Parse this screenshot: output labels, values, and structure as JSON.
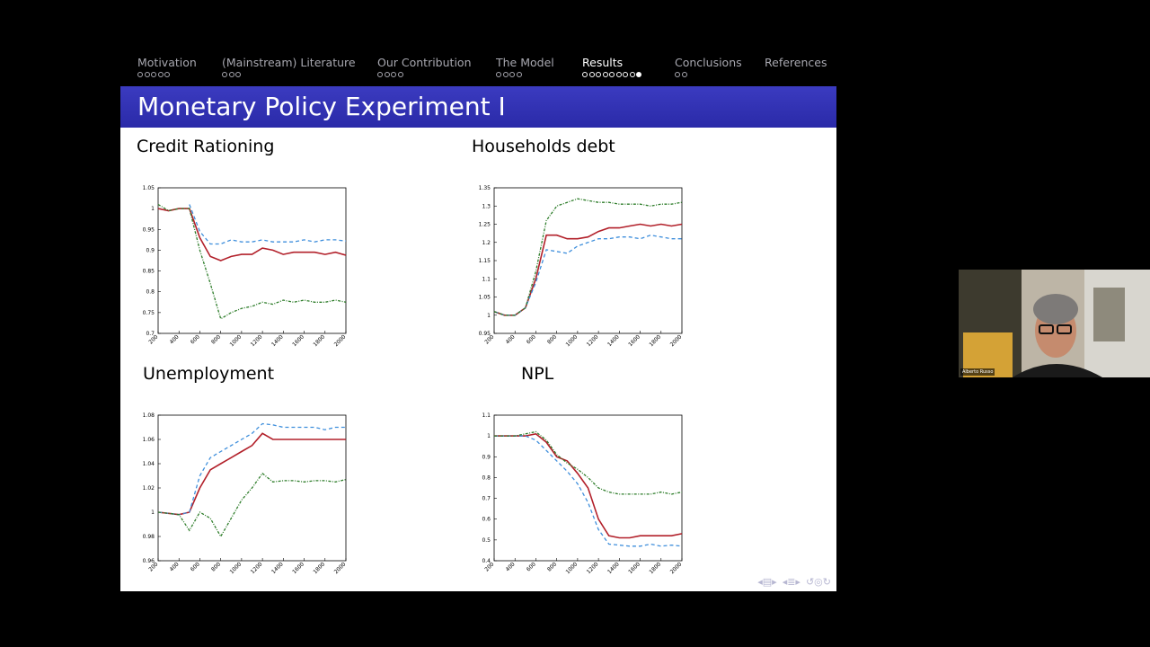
{
  "nav": {
    "sections": [
      {
        "label": "Motivation",
        "dots": 5,
        "filled": -1,
        "active": false
      },
      {
        "label": "(Mainstream) Literature",
        "dots": 3,
        "filled": -1,
        "active": false
      },
      {
        "label": "Our Contribution",
        "dots": 4,
        "filled": -1,
        "active": false
      },
      {
        "label": "The Model",
        "dots": 4,
        "filled": -1,
        "active": false
      },
      {
        "label": "Results",
        "dots": 9,
        "filled": 8,
        "active": true
      },
      {
        "label": "Conclusions",
        "dots": 2,
        "filled": -1,
        "active": false
      },
      {
        "label": "References",
        "dots": 0,
        "filled": -1,
        "active": false
      }
    ]
  },
  "slide": {
    "title": "Monetary Policy Experiment I",
    "panels": {
      "credit": "Credit Rationing",
      "debt": "Households debt",
      "unemp": "Unemployment",
      "npl": "NPL"
    }
  },
  "video": {
    "name": "Alberto Russo"
  },
  "colors": {
    "red": "#b2202a",
    "blue": "#3f8fdc",
    "green": "#2e7d2a",
    "title_bar": "#2f2fb0"
  },
  "chart_data": [
    {
      "type": "line",
      "title": "Credit Rationing",
      "x": [
        200,
        300,
        400,
        500,
        600,
        700,
        800,
        900,
        1000,
        1100,
        1200,
        1300,
        1400,
        1500,
        1600,
        1700,
        1800,
        1900,
        2000
      ],
      "xticks": [
        200,
        400,
        600,
        800,
        1000,
        1200,
        1400,
        1600,
        1800,
        2000
      ],
      "yticks": [
        0.7,
        0.75,
        0.8,
        0.85,
        0.9,
        0.95,
        1,
        1.05
      ],
      "ylim": [
        0.7,
        1.05
      ],
      "series": [
        {
          "color": "red",
          "style": "solid",
          "values": [
            1.0,
            0.995,
            1.0,
            1.0,
            0.93,
            0.885,
            0.875,
            0.885,
            0.89,
            0.89,
            0.905,
            0.9,
            0.89,
            0.895,
            0.895,
            0.895,
            0.89,
            0.895,
            0.888
          ]
        },
        {
          "color": "blue",
          "style": "dashed",
          "values": [
            null,
            null,
            null,
            1.01,
            0.945,
            0.915,
            0.915,
            0.925,
            0.92,
            0.92,
            0.925,
            0.92,
            0.92,
            0.92,
            0.925,
            0.92,
            0.925,
            0.925,
            0.922
          ]
        },
        {
          "color": "green",
          "style": "dashdot",
          "values": [
            1.01,
            0.995,
            1.0,
            1.0,
            0.9,
            0.82,
            0.735,
            0.75,
            0.76,
            0.765,
            0.775,
            0.77,
            0.78,
            0.775,
            0.78,
            0.775,
            0.775,
            0.78,
            0.775
          ]
        }
      ]
    },
    {
      "type": "line",
      "title": "Households debt",
      "x": [
        200,
        300,
        400,
        500,
        600,
        700,
        800,
        900,
        1000,
        1100,
        1200,
        1300,
        1400,
        1500,
        1600,
        1700,
        1800,
        1900,
        2000
      ],
      "xticks": [
        200,
        400,
        600,
        800,
        1000,
        1200,
        1400,
        1600,
        1800,
        2000
      ],
      "yticks": [
        0.95,
        1,
        1.05,
        1.1,
        1.15,
        1.2,
        1.25,
        1.3,
        1.35
      ],
      "ylim": [
        0.95,
        1.35
      ],
      "series": [
        {
          "color": "red",
          "style": "solid",
          "values": [
            1.01,
            1.0,
            1.0,
            1.02,
            1.1,
            1.22,
            1.22,
            1.21,
            1.21,
            1.215,
            1.23,
            1.24,
            1.24,
            1.245,
            1.25,
            1.245,
            1.25,
            1.245,
            1.25
          ]
        },
        {
          "color": "blue",
          "style": "dashed",
          "values": [
            1.01,
            1.0,
            1.0,
            1.02,
            1.09,
            1.18,
            1.175,
            1.17,
            1.19,
            1.2,
            1.21,
            1.21,
            1.215,
            1.215,
            1.21,
            1.22,
            1.215,
            1.21,
            1.21
          ]
        },
        {
          "color": "green",
          "style": "dashdot",
          "values": [
            1.01,
            1.0,
            1.0,
            1.02,
            1.12,
            1.26,
            1.3,
            1.31,
            1.32,
            1.315,
            1.31,
            1.31,
            1.305,
            1.305,
            1.305,
            1.3,
            1.305,
            1.305,
            1.31
          ]
        }
      ]
    },
    {
      "type": "line",
      "title": "Unemployment",
      "x": [
        200,
        300,
        400,
        500,
        600,
        700,
        800,
        900,
        1000,
        1100,
        1200,
        1300,
        1400,
        1500,
        1600,
        1700,
        1800,
        1900,
        2000
      ],
      "xticks": [
        200,
        400,
        600,
        800,
        1000,
        1200,
        1400,
        1600,
        1800,
        2000
      ],
      "yticks": [
        0.96,
        0.98,
        1,
        1.02,
        1.04,
        1.06,
        1.08
      ],
      "ylim": [
        0.96,
        1.08
      ],
      "series": [
        {
          "color": "red",
          "style": "solid",
          "values": [
            1.0,
            0.999,
            0.998,
            1.0,
            1.02,
            1.035,
            1.04,
            1.045,
            1.05,
            1.055,
            1.065,
            1.06,
            1.06,
            1.06,
            1.06,
            1.06,
            1.06,
            1.06,
            1.06
          ]
        },
        {
          "color": "blue",
          "style": "dashed",
          "values": [
            1.0,
            0.999,
            0.998,
            1.0,
            1.03,
            1.045,
            1.05,
            1.055,
            1.06,
            1.065,
            1.073,
            1.072,
            1.07,
            1.07,
            1.07,
            1.07,
            1.068,
            1.07,
            1.07
          ]
        },
        {
          "color": "green",
          "style": "dashdot",
          "values": [
            1.0,
            0.999,
            0.998,
            0.985,
            1.0,
            0.995,
            0.98,
            0.995,
            1.01,
            1.02,
            1.032,
            1.025,
            1.026,
            1.026,
            1.025,
            1.026,
            1.026,
            1.025,
            1.027
          ]
        }
      ]
    },
    {
      "type": "line",
      "title": "NPL",
      "x": [
        200,
        300,
        400,
        500,
        600,
        700,
        800,
        900,
        1000,
        1100,
        1200,
        1300,
        1400,
        1500,
        1600,
        1700,
        1800,
        1900,
        2000
      ],
      "xticks": [
        200,
        400,
        600,
        800,
        1000,
        1200,
        1400,
        1600,
        1800,
        2000
      ],
      "yticks": [
        0.4,
        0.5,
        0.6,
        0.7,
        0.8,
        0.9,
        1,
        1.1
      ],
      "ylim": [
        0.4,
        1.1
      ],
      "series": [
        {
          "color": "red",
          "style": "solid",
          "values": [
            1.0,
            1.0,
            1.0,
            1.0,
            1.01,
            0.97,
            0.9,
            0.88,
            0.82,
            0.75,
            0.6,
            0.52,
            0.51,
            0.51,
            0.52,
            0.52,
            0.52,
            0.52,
            0.53
          ]
        },
        {
          "color": "blue",
          "style": "dashed",
          "values": [
            1.0,
            1.0,
            1.0,
            1.0,
            0.98,
            0.93,
            0.88,
            0.83,
            0.77,
            0.68,
            0.55,
            0.48,
            0.475,
            0.47,
            0.47,
            0.48,
            0.47,
            0.475,
            0.47
          ]
        },
        {
          "color": "green",
          "style": "dashdot",
          "values": [
            1.0,
            1.0,
            1.0,
            1.01,
            1.02,
            0.98,
            0.91,
            0.87,
            0.84,
            0.8,
            0.75,
            0.73,
            0.72,
            0.72,
            0.72,
            0.72,
            0.73,
            0.72,
            0.73
          ]
        }
      ]
    }
  ]
}
